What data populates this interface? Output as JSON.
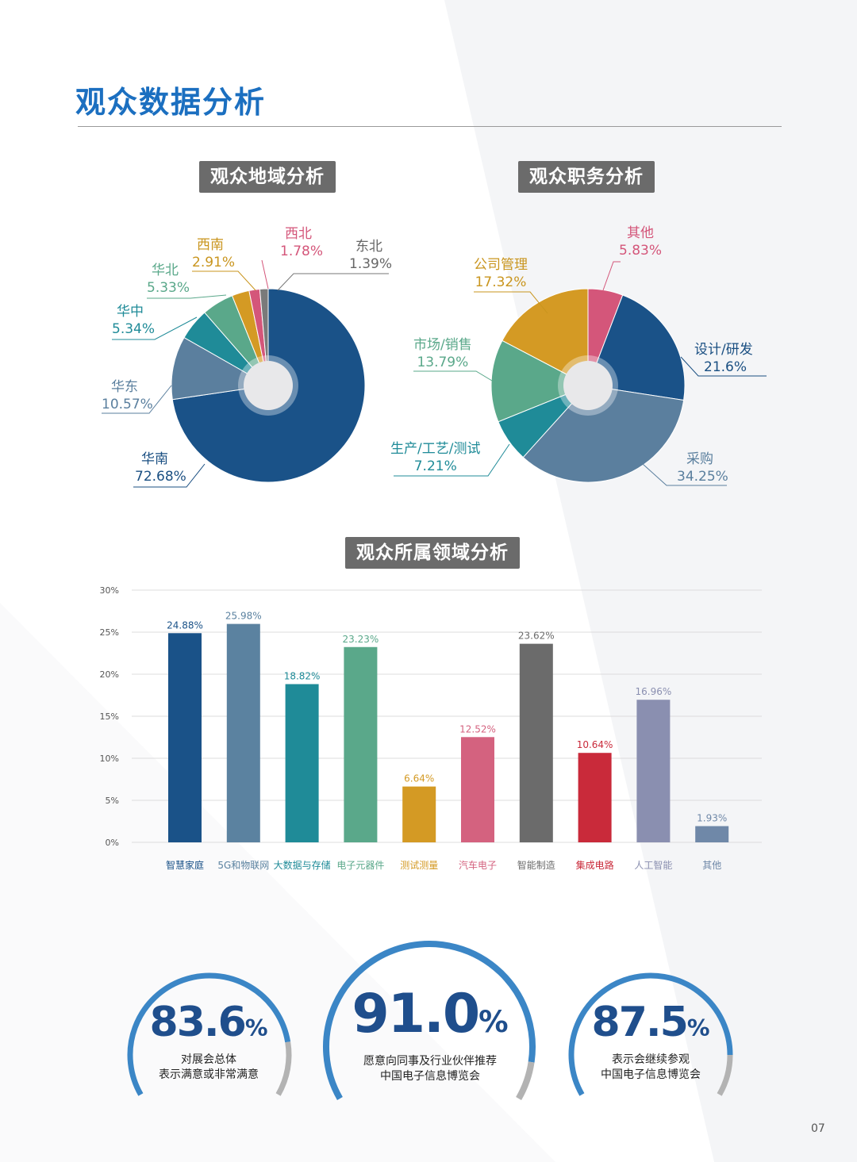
{
  "page": {
    "title": "观众数据分析",
    "page_number": "07"
  },
  "sections": {
    "region": "观众地域分析",
    "role": "观众职务分析",
    "field": "观众所属领域分析"
  },
  "colors": {
    "accent": "#1b6fc0",
    "navy": "#1a5288"
  },
  "region_labels": [
    {
      "name": "华南",
      "value": "72.68%",
      "color": "#1a4f82"
    },
    {
      "name": "华东",
      "value": "10.57%",
      "color": "#5a7f9e"
    },
    {
      "name": "华中",
      "value": "5.34%",
      "color": "#1f8b98"
    },
    {
      "name": "华北",
      "value": "5.33%",
      "color": "#5aa88a"
    },
    {
      "name": "西南",
      "value": "2.91%",
      "color": "#c9951e"
    },
    {
      "name": "西北",
      "value": "1.78%",
      "color": "#d4567a"
    },
    {
      "name": "东北",
      "value": "1.39%",
      "color": "#777777"
    }
  ],
  "role_labels": [
    {
      "name": "设计/研发",
      "value": "21.6%",
      "color": "#1a4f82"
    },
    {
      "name": "采购",
      "value": "34.25%",
      "color": "#5a7f9e"
    },
    {
      "name": "生产/工艺/测试",
      "value": "7.21%",
      "color": "#1f8b98"
    },
    {
      "name": "市场/销售",
      "value": "13.79%",
      "color": "#5aa88a"
    },
    {
      "name": "公司管理",
      "value": "17.32%",
      "color": "#c9951e"
    },
    {
      "name": "其他",
      "value": "5.83%",
      "color": "#d4567a"
    }
  ],
  "chart_data": [
    {
      "type": "pie",
      "title": "观众地域分析",
      "labels": [
        "华南",
        "华东",
        "华中",
        "华北",
        "西南",
        "西北",
        "东北"
      ],
      "values": [
        72.68,
        10.57,
        5.34,
        5.33,
        2.91,
        1.78,
        1.39
      ],
      "colors": [
        "#1a5288",
        "#5b7f9e",
        "#1f8b98",
        "#5aa88a",
        "#d49a24",
        "#d4567a",
        "#7a7a7a"
      ]
    },
    {
      "type": "pie",
      "title": "观众职务分析",
      "labels": [
        "其他",
        "设计/研发",
        "采购",
        "生产/工艺/测试",
        "市场/销售",
        "公司管理"
      ],
      "values": [
        5.83,
        21.6,
        34.25,
        7.21,
        13.79,
        17.32
      ],
      "colors": [
        "#d4567a",
        "#1a5288",
        "#5b7f9e",
        "#1f8b98",
        "#5aa88a",
        "#d49a24"
      ]
    },
    {
      "type": "bar",
      "title": "观众所属领域分析",
      "categories": [
        "智慧家庭",
        "5G和物联网",
        "大数据与存储",
        "电子元器件",
        "测试测量",
        "汽车电子",
        "智能制造",
        "集成电路",
        "人工智能",
        "其他"
      ],
      "values": [
        24.88,
        25.98,
        18.82,
        23.23,
        6.64,
        12.52,
        23.62,
        10.64,
        16.96,
        1.93
      ],
      "value_labels": [
        "24.88%",
        "25.98%",
        "18.82%",
        "23.23%",
        "6.64%",
        "12.52%",
        "23.62%",
        "10.64%",
        "16.96%",
        "1.93%"
      ],
      "colors": [
        "#1a5288",
        "#5b82a0",
        "#1f8b98",
        "#5aa88a",
        "#d49a24",
        "#d4627f",
        "#6b6b6b",
        "#c92a3a",
        "#8a8fb0",
        "#6f88a8"
      ],
      "ylim": [
        0,
        30
      ],
      "yticks": [
        "0%",
        "5%",
        "10%",
        "15%",
        "20%",
        "25%",
        "30%"
      ],
      "grid": true
    }
  ],
  "stats": [
    {
      "number": "83.6",
      "unit": "%",
      "line1": "对展会总体",
      "line2": "表示满意或非常满意",
      "ratio": 0.836
    },
    {
      "number": "91.0",
      "unit": "%",
      "line1": "愿意向同事及行业伙伴推荐",
      "line2": "中国电子信息博览会",
      "ratio": 0.91
    },
    {
      "number": "87.5",
      "unit": "%",
      "line1": "表示会继续参观",
      "line2": "中国电子信息博览会",
      "ratio": 0.875
    }
  ]
}
